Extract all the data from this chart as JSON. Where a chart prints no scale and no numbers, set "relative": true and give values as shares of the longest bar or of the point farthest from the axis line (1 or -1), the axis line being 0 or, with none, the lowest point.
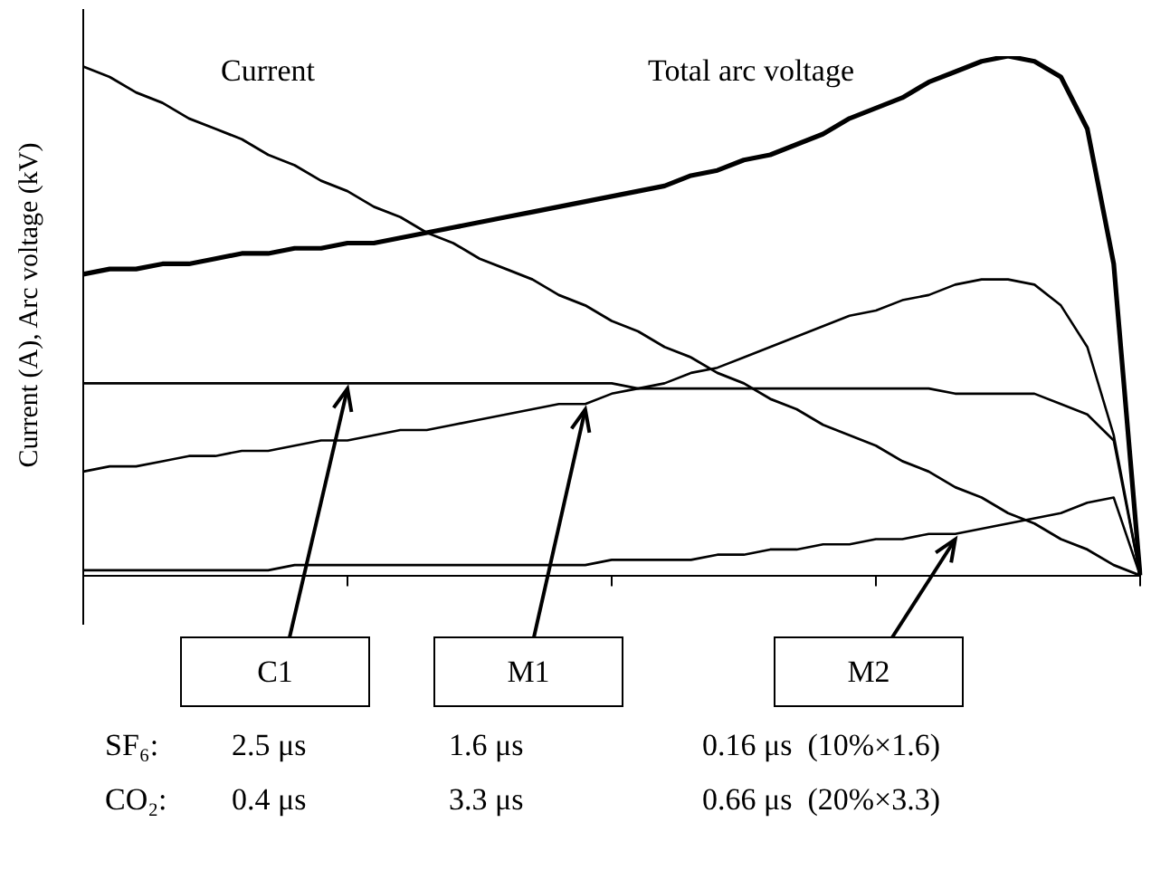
{
  "chart_data": {
    "type": "line",
    "ylabel": "Current (A), Arc voltage (kV)",
    "relative": true,
    "categories": [
      null,
      null,
      null,
      null,
      null,
      null,
      null,
      null,
      null,
      null,
      null,
      null,
      null,
      null,
      null,
      null,
      null,
      null,
      null,
      null,
      null,
      null,
      null,
      null,
      null,
      null,
      null,
      null,
      null,
      null,
      null,
      null,
      null,
      null,
      null,
      null,
      null,
      null,
      null,
      null,
      null
    ],
    "grid": false,
    "legend": false,
    "marker": "none",
    "line_style": "solid",
    "series": [
      {
        "name": "Current",
        "color": "#000000",
        "values": [
          0.98,
          0.96,
          0.93,
          0.91,
          0.88,
          0.86,
          0.84,
          0.81,
          0.79,
          0.76,
          0.74,
          0.71,
          0.69,
          0.66,
          0.64,
          0.61,
          0.59,
          0.57,
          0.54,
          0.52,
          0.49,
          0.47,
          0.44,
          0.42,
          0.39,
          0.37,
          0.34,
          0.32,
          0.29,
          0.27,
          0.25,
          0.22,
          0.2,
          0.17,
          0.15,
          0.12,
          0.1,
          0.07,
          0.05,
          0.02,
          0
        ]
      },
      {
        "name": "Total arc voltage",
        "color": "#000000",
        "values": [
          0.58,
          0.59,
          0.59,
          0.6,
          0.6,
          0.61,
          0.62,
          0.62,
          0.63,
          0.63,
          0.64,
          0.64,
          0.65,
          0.66,
          0.67,
          0.68,
          0.69,
          0.7,
          0.71,
          0.72,
          0.73,
          0.74,
          0.75,
          0.77,
          0.78,
          0.8,
          0.81,
          0.83,
          0.85,
          0.88,
          0.9,
          0.92,
          0.95,
          0.97,
          0.99,
          1,
          0.99,
          0.96,
          0.86,
          0.6,
          0
        ]
      },
      {
        "name": "C1",
        "color": "#000000",
        "values": [
          0.37,
          0.37,
          0.37,
          0.37,
          0.37,
          0.37,
          0.37,
          0.37,
          0.37,
          0.37,
          0.37,
          0.37,
          0.37,
          0.37,
          0.37,
          0.37,
          0.37,
          0.37,
          0.37,
          0.37,
          0.37,
          0.36,
          0.36,
          0.36,
          0.36,
          0.36,
          0.36,
          0.36,
          0.36,
          0.36,
          0.36,
          0.36,
          0.36,
          0.35,
          0.35,
          0.35,
          0.35,
          0.33,
          0.31,
          0.26,
          0
        ]
      },
      {
        "name": "M1",
        "color": "#000000",
        "values": [
          0.2,
          0.21,
          0.21,
          0.22,
          0.23,
          0.23,
          0.24,
          0.24,
          0.25,
          0.26,
          0.26,
          0.27,
          0.28,
          0.28,
          0.29,
          0.3,
          0.31,
          0.32,
          0.33,
          0.33,
          0.35,
          0.36,
          0.37,
          0.39,
          0.4,
          0.42,
          0.44,
          0.46,
          0.48,
          0.5,
          0.51,
          0.53,
          0.54,
          0.56,
          0.57,
          0.57,
          0.56,
          0.52,
          0.44,
          0.27,
          0
        ]
      },
      {
        "name": "M2",
        "color": "#000000",
        "values": [
          0.01,
          0.01,
          0.01,
          0.01,
          0.01,
          0.01,
          0.01,
          0.01,
          0.02,
          0.02,
          0.02,
          0.02,
          0.02,
          0.02,
          0.02,
          0.02,
          0.02,
          0.02,
          0.02,
          0.02,
          0.03,
          0.03,
          0.03,
          0.03,
          0.04,
          0.04,
          0.05,
          0.05,
          0.06,
          0.06,
          0.07,
          0.07,
          0.08,
          0.08,
          0.09,
          0.1,
          0.11,
          0.12,
          0.14,
          0.15,
          0
        ]
      }
    ],
    "annotations": [
      "SF₆:",
      "2.5 μs",
      "1.6 μs",
      "0.16 μs  (10%×1.6)",
      "CO₂:",
      "0.4 μs",
      "3.3 μs",
      "0.66 μs  (20%×3.3)"
    ]
  }
}
